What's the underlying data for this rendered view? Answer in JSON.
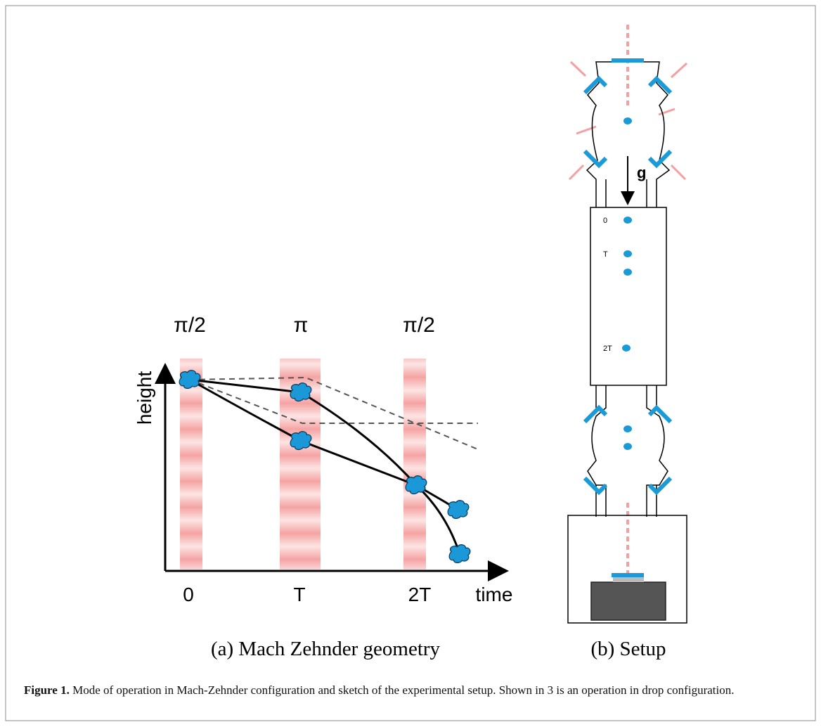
{
  "panel_a": {
    "pulses": [
      "π/2",
      "π",
      "π/2"
    ],
    "y_label": "height",
    "x_label": "time",
    "x_ticks": [
      "0",
      "T",
      "2T"
    ],
    "caption": "(a) Mach Zehnder geometry"
  },
  "panel_b": {
    "gravity_label": "g",
    "time_labels": [
      "0",
      "T",
      "2T"
    ],
    "caption": "(b) Setup"
  },
  "figure_caption": {
    "label": "Figure 1.",
    "text": "Mode of operation in Mach-Zehnder configuration and sketch of the experimental setup. Shown in 3 is an operation in drop configuration."
  }
}
